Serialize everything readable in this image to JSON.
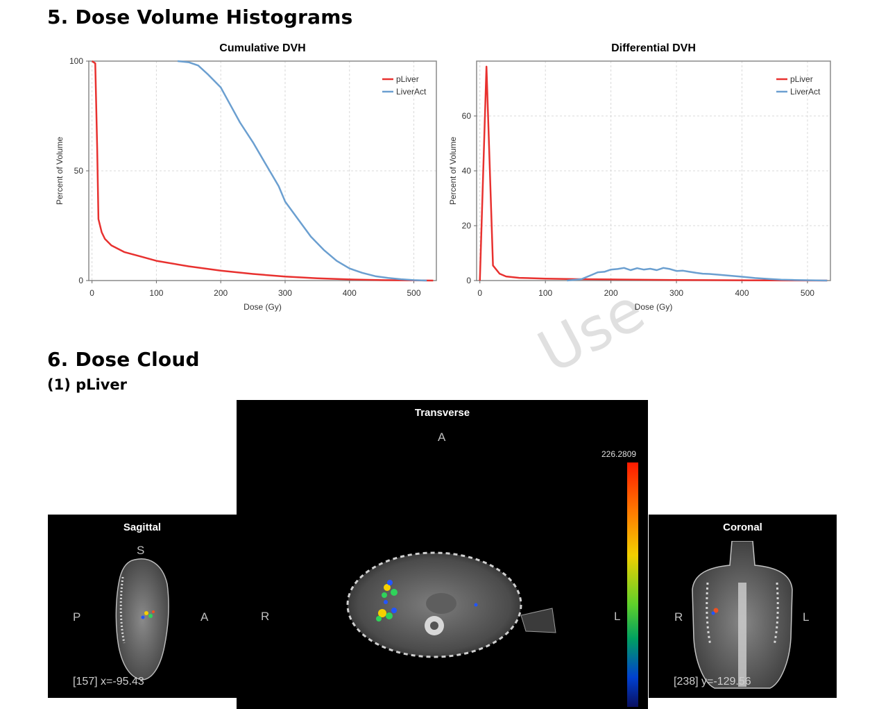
{
  "sections": {
    "dvh_title": "5. Dose Volume Histograms",
    "cloud_title": "6. Dose Cloud",
    "cloud_subtitle": "(1) pLiver"
  },
  "watermark": "Use",
  "colors": {
    "pLiver": "#e8312f",
    "LiverAct": "#6b9fd0",
    "grid": "#d8d8d8"
  },
  "chart_data": [
    {
      "type": "line",
      "title": "Cumulative DVH",
      "xlabel": "Dose (Gy)",
      "ylabel": "Percent of Volume",
      "xlim": [
        -5,
        535
      ],
      "ylim": [
        0,
        100
      ],
      "xticks": [
        0,
        100,
        200,
        300,
        400,
        500
      ],
      "yticks": [
        0,
        50,
        100
      ],
      "grid": true,
      "legend_position": "top-right",
      "series": [
        {
          "name": "pLiver",
          "color": "#e8312f",
          "points": [
            [
              0,
              100
            ],
            [
              5,
              99
            ],
            [
              8,
              60
            ],
            [
              10,
              28
            ],
            [
              15,
              22
            ],
            [
              20,
              19
            ],
            [
              30,
              16
            ],
            [
              50,
              13
            ],
            [
              75,
              11
            ],
            [
              100,
              9
            ],
            [
              150,
              6.5
            ],
            [
              200,
              4.5
            ],
            [
              250,
              3
            ],
            [
              300,
              1.8
            ],
            [
              350,
              1
            ],
            [
              400,
              0.5
            ],
            [
              450,
              0.2
            ],
            [
              530,
              0
            ]
          ]
        },
        {
          "name": "LiverAct",
          "color": "#6b9fd0",
          "points": [
            [
              133,
              100
            ],
            [
              150,
              99.5
            ],
            [
              165,
              98
            ],
            [
              180,
              94
            ],
            [
              200,
              88
            ],
            [
              215,
              80
            ],
            [
              230,
              72
            ],
            [
              250,
              63
            ],
            [
              270,
              53
            ],
            [
              290,
              43
            ],
            [
              300,
              36
            ],
            [
              320,
              28
            ],
            [
              340,
              20
            ],
            [
              360,
              14
            ],
            [
              380,
              9
            ],
            [
              400,
              5.5
            ],
            [
              420,
              3.5
            ],
            [
              440,
              2
            ],
            [
              460,
              1.2
            ],
            [
              480,
              0.6
            ],
            [
              500,
              0.2
            ],
            [
              520,
              0
            ]
          ]
        }
      ]
    },
    {
      "type": "line",
      "title": "Differential DVH",
      "xlabel": "Dose (Gy)",
      "ylabel": "Percent of Volume",
      "xlim": [
        -5,
        535
      ],
      "ylim": [
        0,
        80
      ],
      "xticks": [
        0,
        100,
        200,
        300,
        400,
        500
      ],
      "yticks": [
        0,
        20,
        40,
        60
      ],
      "grid": true,
      "legend_position": "top-right",
      "series": [
        {
          "name": "pLiver",
          "color": "#e8312f",
          "points": [
            [
              0,
              0
            ],
            [
              10,
              78
            ],
            [
              20,
              5.5
            ],
            [
              30,
              2.5
            ],
            [
              40,
              1.5
            ],
            [
              60,
              1
            ],
            [
              100,
              0.7
            ],
            [
              150,
              0.5
            ],
            [
              200,
              0.4
            ],
            [
              300,
              0.2
            ],
            [
              400,
              0.1
            ],
            [
              530,
              0
            ]
          ]
        },
        {
          "name": "LiverAct",
          "color": "#6b9fd0",
          "points": [
            [
              133,
              0
            ],
            [
              155,
              0.5
            ],
            [
              170,
              2
            ],
            [
              180,
              3
            ],
            [
              190,
              3.2
            ],
            [
              200,
              4
            ],
            [
              210,
              4.2
            ],
            [
              220,
              4.6
            ],
            [
              230,
              3.8
            ],
            [
              240,
              4.5
            ],
            [
              250,
              4
            ],
            [
              260,
              4.3
            ],
            [
              270,
              3.8
            ],
            [
              280,
              4.6
            ],
            [
              290,
              4.2
            ],
            [
              300,
              3.5
            ],
            [
              310,
              3.6
            ],
            [
              320,
              3.2
            ],
            [
              330,
              2.8
            ],
            [
              340,
              2.5
            ],
            [
              350,
              2.4
            ],
            [
              360,
              2.2
            ],
            [
              380,
              1.8
            ],
            [
              400,
              1.4
            ],
            [
              420,
              0.9
            ],
            [
              440,
              0.6
            ],
            [
              460,
              0.3
            ],
            [
              480,
              0.2
            ],
            [
              530,
              0
            ]
          ]
        }
      ]
    }
  ],
  "viewer": {
    "transverse": {
      "title": "Transverse",
      "top": "A",
      "left": "R",
      "right": "L",
      "colorbar_max": "226.2809"
    },
    "sagittal": {
      "title": "Sagittal",
      "top": "S",
      "left": "P",
      "right": "A",
      "readout": "[157] x=-95.43"
    },
    "coronal": {
      "title": "Coronal",
      "left": "R",
      "right": "L",
      "readout": "[238] y=-129.56"
    }
  }
}
